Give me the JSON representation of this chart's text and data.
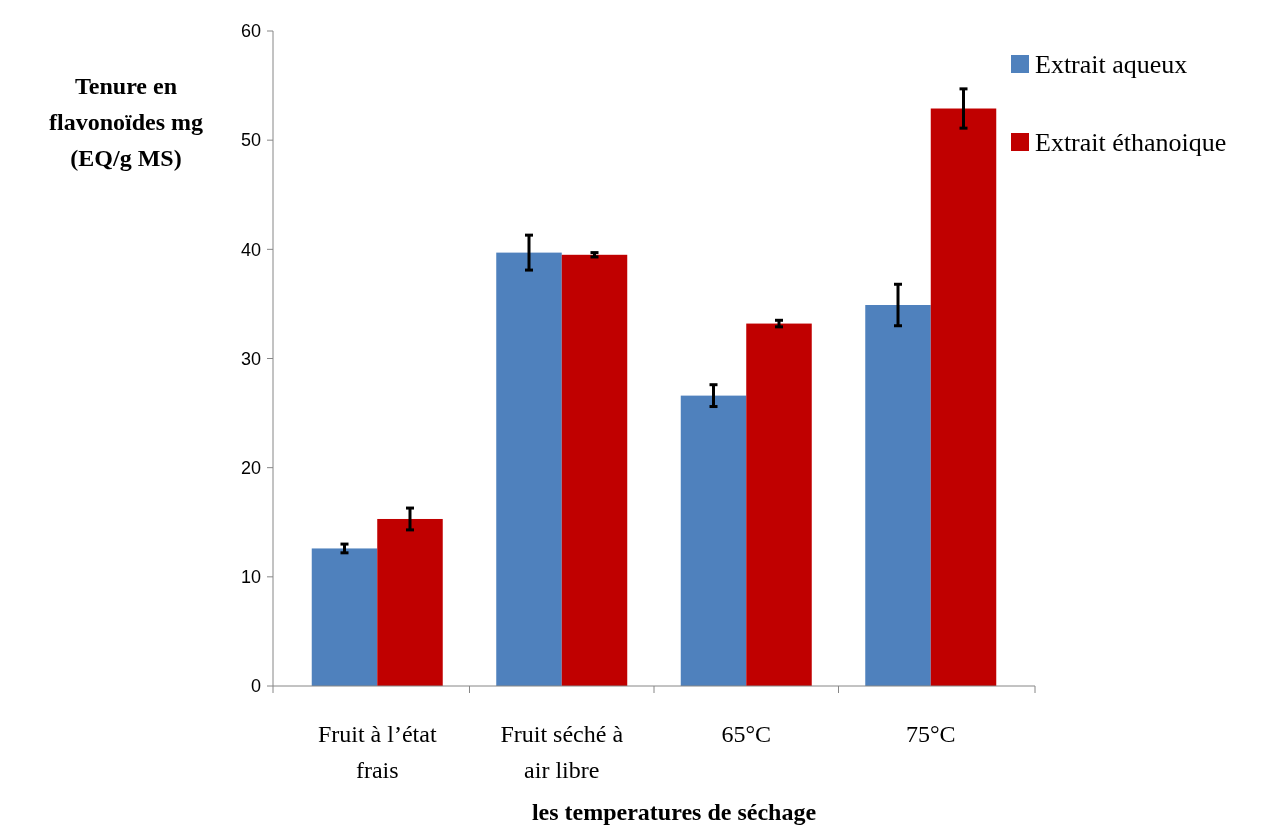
{
  "chart_data": {
    "type": "bar",
    "xlabel": "les temperatures de séchage",
    "ylabel": "Tenure en flavonoïdes mg (EQ/g MS)",
    "categories": [
      "Fruit à l’état frais",
      "Fruit séché à air libre",
      "65°C",
      "75°C"
    ],
    "series": [
      {
        "name": "Extrait aqueux",
        "color": "#4f81bd",
        "values": [
          12.6,
          39.7,
          26.6,
          34.9
        ],
        "errors": [
          0.4,
          1.6,
          1.0,
          1.9
        ]
      },
      {
        "name": "Extrait éthanoique",
        "color": "#c00000",
        "values": [
          15.3,
          39.5,
          33.2,
          52.9
        ],
        "errors": [
          1.0,
          0.2,
          0.3,
          1.8
        ]
      }
    ],
    "ylim": [
      0,
      60
    ],
    "yticks": [
      0,
      10,
      20,
      30,
      40,
      50,
      60
    ],
    "legend": "right",
    "grid": false
  }
}
